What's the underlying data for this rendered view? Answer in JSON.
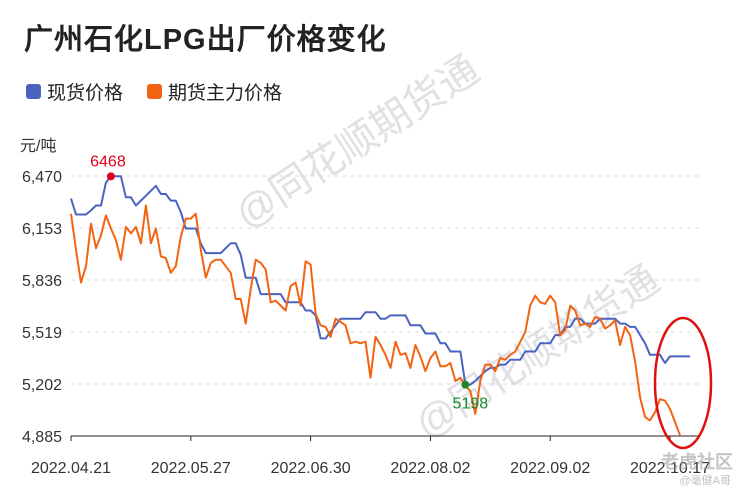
{
  "title": "广州石化LPG出厂价格变化",
  "unit_label": "元/吨",
  "watermark": "@同花顺期货通",
  "corner_text": "老虎社区",
  "corner_subtext": "@毫健A哥",
  "colors": {
    "spot": "#4a63c0",
    "futures": "#f26411",
    "high_dot": "#e0001b",
    "low_dot": "#1a8a2e",
    "annotation_circle": "#e01010"
  },
  "chart_data": {
    "type": "line",
    "ylim": [
      4885,
      6470
    ],
    "y_ticks": [
      4885,
      5202,
      5519,
      5836,
      6153,
      6470
    ],
    "y_tick_labels": [
      "4,885",
      "5,202",
      "5,519",
      "5,836",
      "6,153",
      "6,470"
    ],
    "x_ticks": [
      0,
      24,
      48,
      72,
      96,
      120
    ],
    "x_tick_labels": [
      "2022.04.21",
      "2022.05.27",
      "2022.06.30",
      "2022.08.02",
      "2022.09.02",
      "2022.10.17"
    ],
    "x_count": 123,
    "series": [
      {
        "name": "现货价格",
        "values": [
          6332,
          6235,
          6235,
          6235,
          6260,
          6290,
          6290,
          6430,
          6468,
          6468,
          6468,
          6340,
          6340,
          6290,
          6320,
          6350,
          6380,
          6410,
          6360,
          6360,
          6320,
          6320,
          6250,
          6150,
          6150,
          6150,
          6060,
          6000,
          6000,
          6000,
          6000,
          6030,
          6060,
          6060,
          5990,
          5850,
          5850,
          5850,
          5750,
          5750,
          5750,
          5750,
          5750,
          5700,
          5700,
          5700,
          5700,
          5650,
          5650,
          5620,
          5480,
          5480,
          5520,
          5560,
          5600,
          5600,
          5600,
          5600,
          5600,
          5640,
          5640,
          5640,
          5600,
          5600,
          5620,
          5620,
          5620,
          5620,
          5560,
          5560,
          5560,
          5510,
          5510,
          5510,
          5450,
          5450,
          5400,
          5400,
          5400,
          5198,
          5198,
          5220,
          5250,
          5280,
          5300,
          5300,
          5320,
          5320,
          5350,
          5350,
          5350,
          5400,
          5400,
          5400,
          5450,
          5450,
          5450,
          5500,
          5500,
          5550,
          5550,
          5600,
          5600,
          5570,
          5570,
          5570,
          5600,
          5600,
          5600,
          5600,
          5570,
          5570,
          5550,
          5550,
          5500,
          5450,
          5380,
          5380,
          5380,
          5330,
          5370,
          5370,
          5370,
          5370,
          5370
        ]
      },
      {
        "name": "期货主力价格",
        "values": [
          6240,
          6020,
          5820,
          5920,
          6180,
          6030,
          6110,
          6230,
          6150,
          6080,
          5960,
          6160,
          6120,
          6160,
          6060,
          6290,
          6060,
          6150,
          5980,
          5970,
          5880,
          5920,
          6100,
          6210,
          6210,
          6240,
          6020,
          5850,
          5940,
          5960,
          5960,
          5920,
          5880,
          5720,
          5720,
          5570,
          5780,
          5960,
          5940,
          5900,
          5700,
          5710,
          5680,
          5650,
          5800,
          5820,
          5680,
          5950,
          5930,
          5630,
          5560,
          5550,
          5490,
          5600,
          5580,
          5560,
          5450,
          5460,
          5450,
          5460,
          5240,
          5490,
          5440,
          5380,
          5300,
          5460,
          5380,
          5390,
          5300,
          5440,
          5370,
          5280,
          5360,
          5400,
          5310,
          5310,
          5330,
          5220,
          5240,
          5190,
          5160,
          5020,
          5220,
          5320,
          5320,
          5280,
          5360,
          5350,
          5380,
          5400,
          5460,
          5520,
          5680,
          5740,
          5700,
          5690,
          5740,
          5700,
          5500,
          5530,
          5680,
          5650,
          5560,
          5570,
          5550,
          5610,
          5600,
          5540,
          5560,
          5590,
          5440,
          5550,
          5500,
          5340,
          5120,
          5000,
          4980,
          5030,
          5110,
          5100,
          5050,
          4970,
          4890
        ]
      }
    ],
    "annotations": [
      {
        "label": "6468",
        "index": 8,
        "value": 6468,
        "series": 0
      },
      {
        "label": "5198",
        "index": 79,
        "value": 5198,
        "series": 0
      }
    ]
  }
}
